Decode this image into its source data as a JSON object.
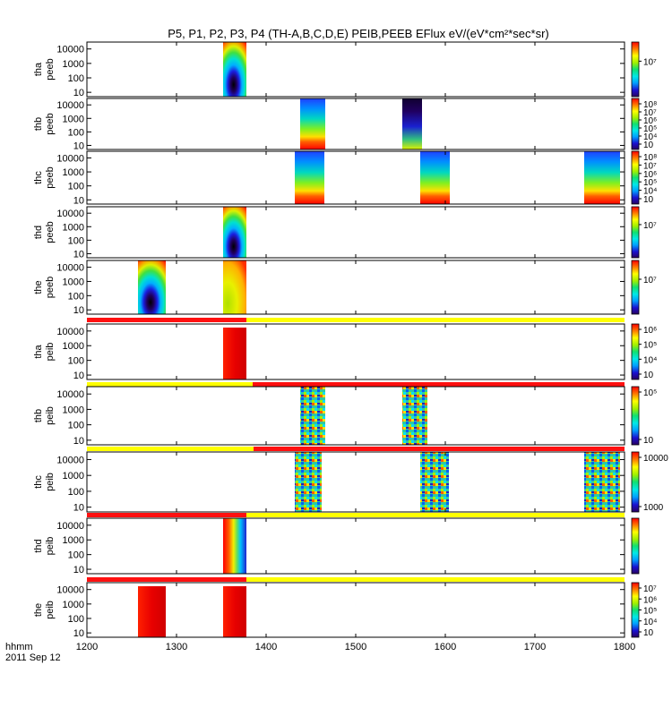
{
  "title": "P5, P1, P2, P3, P4 (TH-A,B,C,D,E) PEIB,PEEB EFlux eV/(eV*cm²*sec*sr)",
  "time_label": "hhmm",
  "date_label": "2011 Sep 12",
  "chart_data": {
    "type": "heatmap",
    "title": "P5, P1, P2, P3, P4 (TH-A,B,C,D,E) PEIB,PEEB EFlux eV/(eV*cm²*sec*sr)",
    "x_ticks": [
      "1200",
      "1300",
      "1400",
      "1500",
      "1600",
      "1700",
      "1800"
    ],
    "x_range": [
      1200,
      1800
    ],
    "y_ticks": [
      "10",
      "100",
      "1000",
      "10000"
    ],
    "y_scale": "log",
    "panels": [
      {
        "label1": "tha",
        "label2": "peeb",
        "colorbar_ticks": [
          "10⁷"
        ],
        "blocks": [
          {
            "x": [
              1352,
              1378
            ],
            "style": "peeb_rainbow"
          }
        ]
      },
      {
        "label1": "thb",
        "label2": "peeb",
        "colorbar_ticks": [
          "10⁸",
          "10⁷",
          "10⁶",
          "10⁵",
          "10⁴",
          "10⁳"
        ],
        "blocks": [
          {
            "x": [
              1438,
              1466
            ],
            "style": "peeb_hot"
          },
          {
            "x": [
              1552,
              1574
            ],
            "style": "peeb_dark"
          }
        ]
      },
      {
        "label1": "thc",
        "label2": "peeb",
        "colorbar_ticks": [
          "10⁸",
          "10⁷",
          "10⁶",
          "10⁵",
          "10⁴",
          "10⁳"
        ],
        "blocks": [
          {
            "x": [
              1432,
              1465
            ],
            "style": "peeb_hot"
          },
          {
            "x": [
              1572,
              1605
            ],
            "style": "peeb_hot"
          },
          {
            "x": [
              1755,
              1795
            ],
            "style": "peeb_hot"
          }
        ]
      },
      {
        "label1": "thd",
        "label2": "peeb",
        "colorbar_ticks": [
          "10⁷"
        ],
        "blocks": [
          {
            "x": [
              1352,
              1378
            ],
            "style": "peeb_rainbow"
          }
        ]
      },
      {
        "label1": "the",
        "label2": "peeb",
        "colorbar_ticks": [
          "10⁷"
        ],
        "blocks": [
          {
            "x": [
              1257,
              1288
            ],
            "style": "peeb_rainbow"
          },
          {
            "x": [
              1352,
              1378
            ],
            "style": "peeb_yellow"
          }
        ]
      },
      {
        "label1": "tha",
        "label2": "peib",
        "colorbar_ticks": [
          "10⁶",
          "10⁵",
          "10⁴",
          "10⁳"
        ],
        "blocks": [
          {
            "x": [
              1352,
              1378
            ],
            "style": "peib_red"
          }
        ],
        "mode_bar": [
          {
            "x": [
              1200,
              1378
            ],
            "color": "red"
          },
          {
            "x": [
              1378,
              1800
            ],
            "color": "yellow"
          }
        ]
      },
      {
        "label1": "thb",
        "label2": "peib",
        "colorbar_ticks": [
          "10⁵",
          "10⁳"
        ],
        "blocks": [
          {
            "x": [
              1438,
              1466
            ],
            "style": "peib_noisy"
          },
          {
            "x": [
              1552,
              1580
            ],
            "style": "peib_noisy"
          }
        ],
        "mode_bar": [
          {
            "x": [
              1200,
              1385
            ],
            "color": "yellow"
          },
          {
            "x": [
              1385,
              1800
            ],
            "color": "red"
          }
        ]
      },
      {
        "label1": "thc",
        "label2": "peib",
        "colorbar_ticks": [
          "10000",
          "1000"
        ],
        "blocks": [
          {
            "x": [
              1432,
              1462
            ],
            "style": "peib_noisy"
          },
          {
            "x": [
              1572,
              1604
            ],
            "style": "peib_noisy"
          },
          {
            "x": [
              1755,
              1795
            ],
            "style": "peib_noisy"
          }
        ],
        "mode_bar": [
          {
            "x": [
              1200,
              1386
            ],
            "color": "yellow"
          },
          {
            "x": [
              1386,
              1800
            ],
            "color": "red"
          }
        ]
      },
      {
        "label1": "thd",
        "label2": "peib",
        "colorbar_ticks": [],
        "blocks": [
          {
            "x": [
              1352,
              1378
            ],
            "style": "peib_curve"
          }
        ],
        "mode_bar": [
          {
            "x": [
              1200,
              1378
            ],
            "color": "red"
          },
          {
            "x": [
              1378,
              1800
            ],
            "color": "yellow"
          }
        ]
      },
      {
        "label1": "the",
        "label2": "peib",
        "colorbar_ticks": [
          "10⁷",
          "10⁶",
          "10⁵",
          "10⁴",
          "10⁳"
        ],
        "blocks": [
          {
            "x": [
              1257,
              1288
            ],
            "style": "peib_red"
          },
          {
            "x": [
              1352,
              1378
            ],
            "style": "peib_red"
          }
        ],
        "mode_bar": [
          {
            "x": [
              1200,
              1378
            ],
            "color": "red"
          },
          {
            "x": [
              1378,
              1800
            ],
            "color": "yellow"
          }
        ]
      }
    ],
    "grid": false,
    "legend": "colorbars right of each panel"
  }
}
